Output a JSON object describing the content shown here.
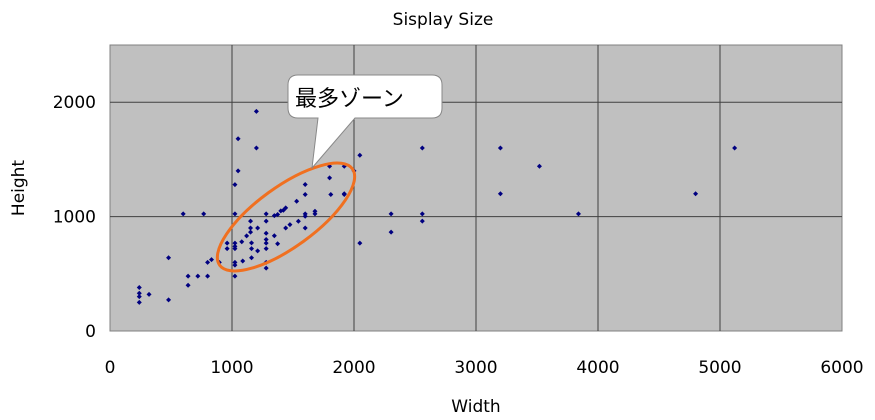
{
  "chart_data": {
    "type": "scatter",
    "title": "Sisplay Size",
    "xlabel": "Width",
    "ylabel": "Height",
    "xlim": [
      0,
      6000
    ],
    "ylim": [
      0,
      2500
    ],
    "xticks": [
      "0",
      "1000",
      "2000",
      "3000",
      "4000",
      "5000",
      "6000"
    ],
    "yticks": [
      "0",
      "1000",
      "2000"
    ],
    "grid": true,
    "plot_background": "#c0c0c0",
    "marker_color": "#000080",
    "annotation": {
      "text": "最多ゾーン",
      "ellipse_color": "#f07020"
    },
    "points": [
      [
        240,
        380
      ],
      [
        240,
        330
      ],
      [
        240,
        300
      ],
      [
        240,
        250
      ],
      [
        320,
        320
      ],
      [
        480,
        272
      ],
      [
        480,
        640
      ],
      [
        600,
        1024
      ],
      [
        768,
        1024
      ],
      [
        640,
        400
      ],
      [
        640,
        480
      ],
      [
        720,
        480
      ],
      [
        800,
        480
      ],
      [
        800,
        600
      ],
      [
        832,
        624
      ],
      [
        896,
        600
      ],
      [
        1024,
        480
      ],
      [
        1024,
        576
      ],
      [
        1024,
        600
      ],
      [
        1024,
        1024
      ],
      [
        1024,
        1280
      ],
      [
        1050,
        1400
      ],
      [
        1050,
        1680
      ],
      [
        1200,
        1920
      ],
      [
        1200,
        1600
      ],
      [
        960,
        768
      ],
      [
        960,
        720
      ],
      [
        1024,
        768
      ],
      [
        1024,
        740
      ],
      [
        1024,
        720
      ],
      [
        1080,
        780
      ],
      [
        1088,
        612
      ],
      [
        1120,
        832
      ],
      [
        1152,
        864
      ],
      [
        1152,
        900
      ],
      [
        1152,
        960
      ],
      [
        1160,
        720
      ],
      [
        1160,
        770
      ],
      [
        1160,
        640
      ],
      [
        1210,
        900
      ],
      [
        1210,
        700
      ],
      [
        1280,
        1024
      ],
      [
        1280,
        960
      ],
      [
        1280,
        854
      ],
      [
        1280,
        800
      ],
      [
        1280,
        768
      ],
      [
        1280,
        720
      ],
      [
        1280,
        600
      ],
      [
        1280,
        550
      ],
      [
        1347,
        833
      ],
      [
        1374,
        763
      ],
      [
        1347,
        1009
      ],
      [
        1374,
        1018
      ],
      [
        1400,
        1050
      ],
      [
        1421,
        1056
      ],
      [
        1440,
        1076
      ],
      [
        1440,
        900
      ],
      [
        1475,
        930
      ],
      [
        1530,
        1134
      ],
      [
        1544,
        959
      ],
      [
        1600,
        1281
      ],
      [
        1600,
        1193
      ],
      [
        1600,
        1003
      ],
      [
        1600,
        1024
      ],
      [
        1600,
        900
      ],
      [
        1680,
        1047
      ],
      [
        1680,
        1024
      ],
      [
        1800,
        1440
      ],
      [
        1800,
        1339
      ],
      [
        1810,
        1193
      ],
      [
        1920,
        1440
      ],
      [
        1920,
        1193
      ],
      [
        1920,
        1200
      ],
      [
        2000,
        1400
      ],
      [
        2048,
        1536
      ],
      [
        2048,
        768
      ],
      [
        2304,
        1024
      ],
      [
        2304,
        864
      ],
      [
        2560,
        1600
      ],
      [
        2560,
        1024
      ],
      [
        2560,
        960
      ],
      [
        3200,
        1600
      ],
      [
        3200,
        1200
      ],
      [
        3520,
        1440
      ],
      [
        3840,
        1024
      ],
      [
        4800,
        1200
      ],
      [
        5120,
        1600
      ]
    ]
  }
}
